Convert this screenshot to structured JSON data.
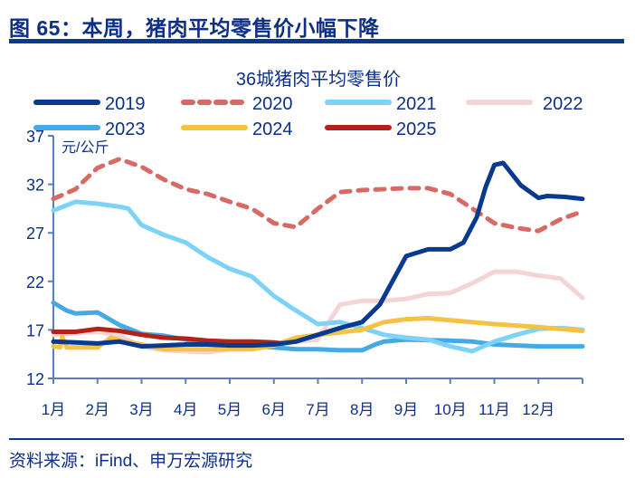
{
  "figure_title": "图 65：本周，猪肉平均零售价小幅下降",
  "source": "资料来源：iFind、申万宏源研究",
  "chart_data": {
    "type": "line",
    "title": "36城猪肉平均零售价",
    "ylabel": "元/公斤",
    "xlabel": "",
    "ylim": [
      12,
      37
    ],
    "yticks": [
      12,
      17,
      22,
      27,
      32,
      37
    ],
    "categories": [
      "1月",
      "2月",
      "3月",
      "4月",
      "5月",
      "6月",
      "7月",
      "8月",
      "9月",
      "10月",
      "11月",
      "12月"
    ],
    "x_unit": "month (1 = start of 1月, 13 = end of 12月)",
    "xlim": [
      1,
      13
    ],
    "grid": false,
    "legend_placement": "top",
    "series": [
      {
        "name": "2019",
        "color": "#0a3a8f",
        "dashed": false,
        "x": [
          1,
          1.5,
          2,
          2.5,
          3,
          3.5,
          4,
          4.5,
          5,
          5.5,
          6,
          6.5,
          7,
          7.5,
          8,
          8.4,
          9,
          9.5,
          10,
          10.3,
          10.6,
          10.8,
          11,
          11.2,
          11.6,
          12,
          12.2,
          12.6,
          13
        ],
        "y": [
          15.8,
          15.7,
          15.6,
          15.8,
          15.3,
          15.4,
          15.5,
          15.5,
          15.4,
          15.4,
          15.5,
          15.8,
          16.5,
          17.2,
          17.8,
          19.6,
          24.6,
          25.3,
          25.3,
          26,
          28.6,
          31.7,
          34,
          34.2,
          31.9,
          30.6,
          30.8,
          30.7,
          30.5
        ]
      },
      {
        "name": "2020",
        "color": "#d86a65",
        "dashed": true,
        "x": [
          1,
          1.5,
          2,
          2.5,
          3,
          3.5,
          4,
          4.5,
          5,
          5.5,
          6,
          6.5,
          7,
          7.5,
          8,
          9,
          9.5,
          10,
          10.5,
          11,
          11.5,
          12,
          12.5,
          13
        ],
        "y": [
          30.5,
          31.5,
          33.7,
          34.6,
          33.8,
          32.5,
          31.5,
          31,
          30.2,
          29.5,
          28,
          27.6,
          29.5,
          31.2,
          31.4,
          31.6,
          31.6,
          31,
          29.5,
          28,
          27.5,
          27.2,
          28.4,
          29.2
        ]
      },
      {
        "name": "2021",
        "color": "#7dd3f7",
        "dashed": false,
        "x": [
          1,
          1.5,
          2,
          2.5,
          2.7,
          3,
          3.5,
          4,
          4.5,
          5,
          5.5,
          6,
          6.5,
          7,
          7.5,
          8,
          8.5,
          9,
          9.5,
          10,
          10.5,
          11,
          11.5,
          12,
          12.5,
          13
        ],
        "y": [
          29.3,
          30.2,
          30,
          29.7,
          29.5,
          27.8,
          26.8,
          26,
          24.5,
          23.3,
          22.5,
          20.5,
          19,
          17.6,
          17.8,
          17.2,
          16.5,
          16.2,
          16,
          15.3,
          14.8,
          15.8,
          16.5,
          17.1,
          17.2,
          17
        ]
      },
      {
        "name": "2022",
        "color": "#f4d4d4",
        "dashed": false,
        "x": [
          1,
          2,
          2.5,
          3,
          3.5,
          4,
          4.5,
          5,
          6,
          6.5,
          7,
          7.2,
          7.5,
          8,
          8.5,
          9,
          9.5,
          10,
          10.5,
          11,
          11.5,
          12,
          12.5,
          13
        ],
        "y": [
          16.5,
          16.8,
          16.4,
          15.3,
          14.9,
          14.8,
          14.7,
          15,
          15.4,
          15.8,
          16,
          17.5,
          19.6,
          20,
          20,
          20.2,
          20.7,
          20.8,
          21.8,
          23,
          23,
          22.6,
          22.3,
          20.3
        ]
      },
      {
        "name": "2023",
        "color": "#45a9e4",
        "dashed": false,
        "x": [
          1,
          1.3,
          1.5,
          2,
          2.5,
          3,
          3.5,
          4,
          4.5,
          5,
          6,
          6.5,
          7,
          7.5,
          8,
          8.3,
          8.5,
          9,
          10,
          10.5,
          11,
          12,
          13
        ],
        "y": [
          19.8,
          19,
          18.7,
          18.8,
          17.5,
          16.6,
          16.4,
          16,
          15.7,
          15.5,
          15.2,
          15,
          15,
          14.9,
          14.9,
          15.5,
          15.8,
          16,
          15.9,
          15.8,
          15.5,
          15.3,
          15.3
        ]
      },
      {
        "name": "2024",
        "color": "#f6c244",
        "dashed": false,
        "x": [
          1,
          1.15,
          1.2,
          1.3,
          2,
          2.3,
          2.6,
          3,
          3.5,
          4,
          5,
          5.5,
          6,
          6.5,
          7,
          8,
          8.5,
          9,
          9.5,
          10,
          11,
          12,
          13
        ],
        "y": [
          15.3,
          15.2,
          16.3,
          15.2,
          15.2,
          16.2,
          15.8,
          15.5,
          15,
          15,
          15,
          15,
          15.4,
          16.2,
          16.5,
          17,
          17.8,
          18.1,
          18.2,
          18,
          17.6,
          17.3,
          16.9
        ]
      },
      {
        "name": "2025",
        "color": "#b32218",
        "dashed": false,
        "x": [
          1,
          1.5,
          2,
          2.5,
          3,
          3.5,
          4,
          4.5,
          5,
          5.5,
          6,
          6.2
        ],
        "y": [
          16.8,
          16.8,
          17.1,
          16.9,
          16.5,
          16.2,
          16.1,
          15.9,
          15.8,
          15.8,
          15.7,
          15.6
        ]
      }
    ]
  }
}
